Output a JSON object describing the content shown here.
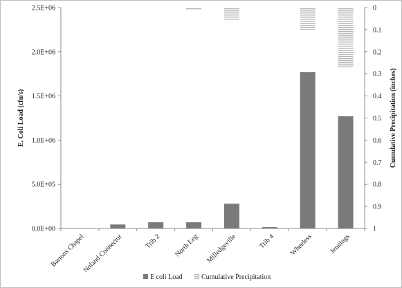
{
  "chart_data": {
    "type": "bar",
    "title": "",
    "categories": [
      "Bartons Chapel",
      "Noland Connector",
      "Trib 2",
      "North Leg",
      "Milledgeville",
      "Trib 4",
      "Wheeless",
      "Jennings"
    ],
    "series": [
      {
        "name": "E coli Load",
        "axis": "left",
        "color": "#7a7a7a",
        "values": [
          0,
          45000,
          70000,
          70000,
          280000,
          15000,
          1770000,
          1270000
        ]
      },
      {
        "name": "Cumulative Precipitation",
        "axis": "right",
        "color": "#c8c8c8",
        "pattern": "hatched",
        "values": [
          0,
          0,
          0,
          0.01,
          0.06,
          0,
          0.1,
          0.27
        ]
      }
    ],
    "ylabel": "E. Coli Load (cfu/s)",
    "ylabel_right": "Cumulative Precipitation (inches)",
    "ylim": [
      0,
      2500000
    ],
    "ylim_right": [
      0,
      1
    ],
    "right_axis_inverted": true,
    "y_ticks": [
      "0.0E+00",
      "5.0E+05",
      "1.0E+06",
      "1.5E+06",
      "2.0E+06",
      "2.5E+06"
    ],
    "y_right_ticks": [
      "0",
      "0.1",
      "0.2",
      "0.3",
      "0.4",
      "0.5",
      "0.6",
      "0.7",
      "0.8",
      "0.9",
      "1"
    ],
    "legend_position": "bottom",
    "grid": false
  }
}
